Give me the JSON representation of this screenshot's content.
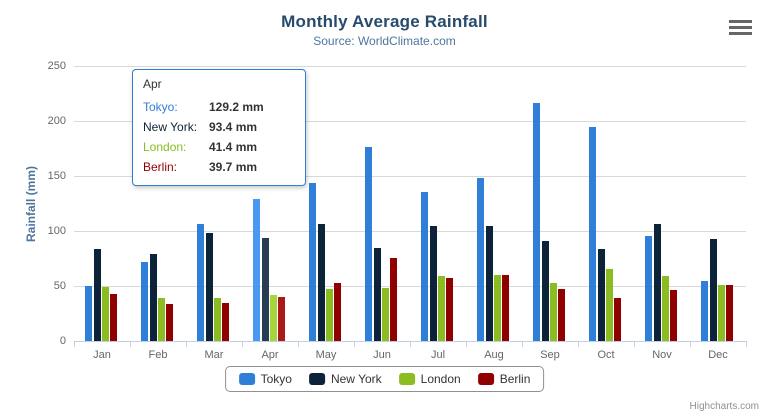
{
  "chart": {
    "credits_label": "Highcharts.com",
    "context_menu_icon": "hamburger-icon"
  },
  "chart_data": {
    "type": "bar",
    "title": "Monthly Average Rainfall",
    "subtitle": "Source: WorldClimate.com",
    "xlabel": "",
    "ylabel": "Rainfall (mm)",
    "ylim": [
      0,
      250
    ],
    "ytick_step": 50,
    "grid": true,
    "legend_position": "bottom-center",
    "categories": [
      "Jan",
      "Feb",
      "Mar",
      "Apr",
      "May",
      "Jun",
      "Jul",
      "Aug",
      "Sep",
      "Oct",
      "Nov",
      "Dec"
    ],
    "hovered_category_index": 3,
    "series": [
      {
        "name": "Tokyo",
        "color": "#2f7ed8",
        "hover_color": "#4a98f2",
        "values": [
          49.9,
          71.5,
          106.4,
          129.2,
          144.0,
          176.0,
          135.6,
          148.5,
          216.4,
          194.1,
          95.6,
          54.4
        ]
      },
      {
        "name": "New York",
        "color": "#0d233a",
        "hover_color": "#273d54",
        "values": [
          83.6,
          78.8,
          98.5,
          93.4,
          106.0,
          84.5,
          105.0,
          104.3,
          91.2,
          83.5,
          106.6,
          92.3
        ]
      },
      {
        "name": "London",
        "color": "#8bbc21",
        "hover_color": "#a5d63b",
        "values": [
          48.9,
          38.8,
          39.3,
          41.4,
          47.0,
          48.3,
          59.0,
          59.6,
          52.4,
          65.2,
          59.3,
          51.2
        ]
      },
      {
        "name": "Berlin",
        "color": "#910000",
        "hover_color": "#ab1a1a",
        "values": [
          42.4,
          33.2,
          34.5,
          39.7,
          52.6,
          75.5,
          57.4,
          60.4,
          47.6,
          39.1,
          46.8,
          51.1
        ]
      }
    ]
  },
  "tooltip": {
    "category": "Apr",
    "border_color": "#2f7ed8",
    "rows": [
      {
        "label": "Tokyo:",
        "value": "129.2 mm",
        "color": "#2f7ed8"
      },
      {
        "label": "New York:",
        "value": "93.4 mm",
        "color": "#0d233a"
      },
      {
        "label": "London:",
        "value": "41.4 mm",
        "color": "#8bbc21"
      },
      {
        "label": "Berlin:",
        "value": "39.7 mm",
        "color": "#910000"
      }
    ]
  },
  "colors": {
    "title": "#274b6d",
    "subtitle": "#4d759e",
    "axis_title": "#4d759e",
    "tick_label": "#666666",
    "gridline": "#d8d8d8",
    "axis_line": "#c0d0e0",
    "legend_border": "#909090",
    "legend_text": "#333333",
    "credits": "#909090",
    "menu_icon": "#666666"
  }
}
